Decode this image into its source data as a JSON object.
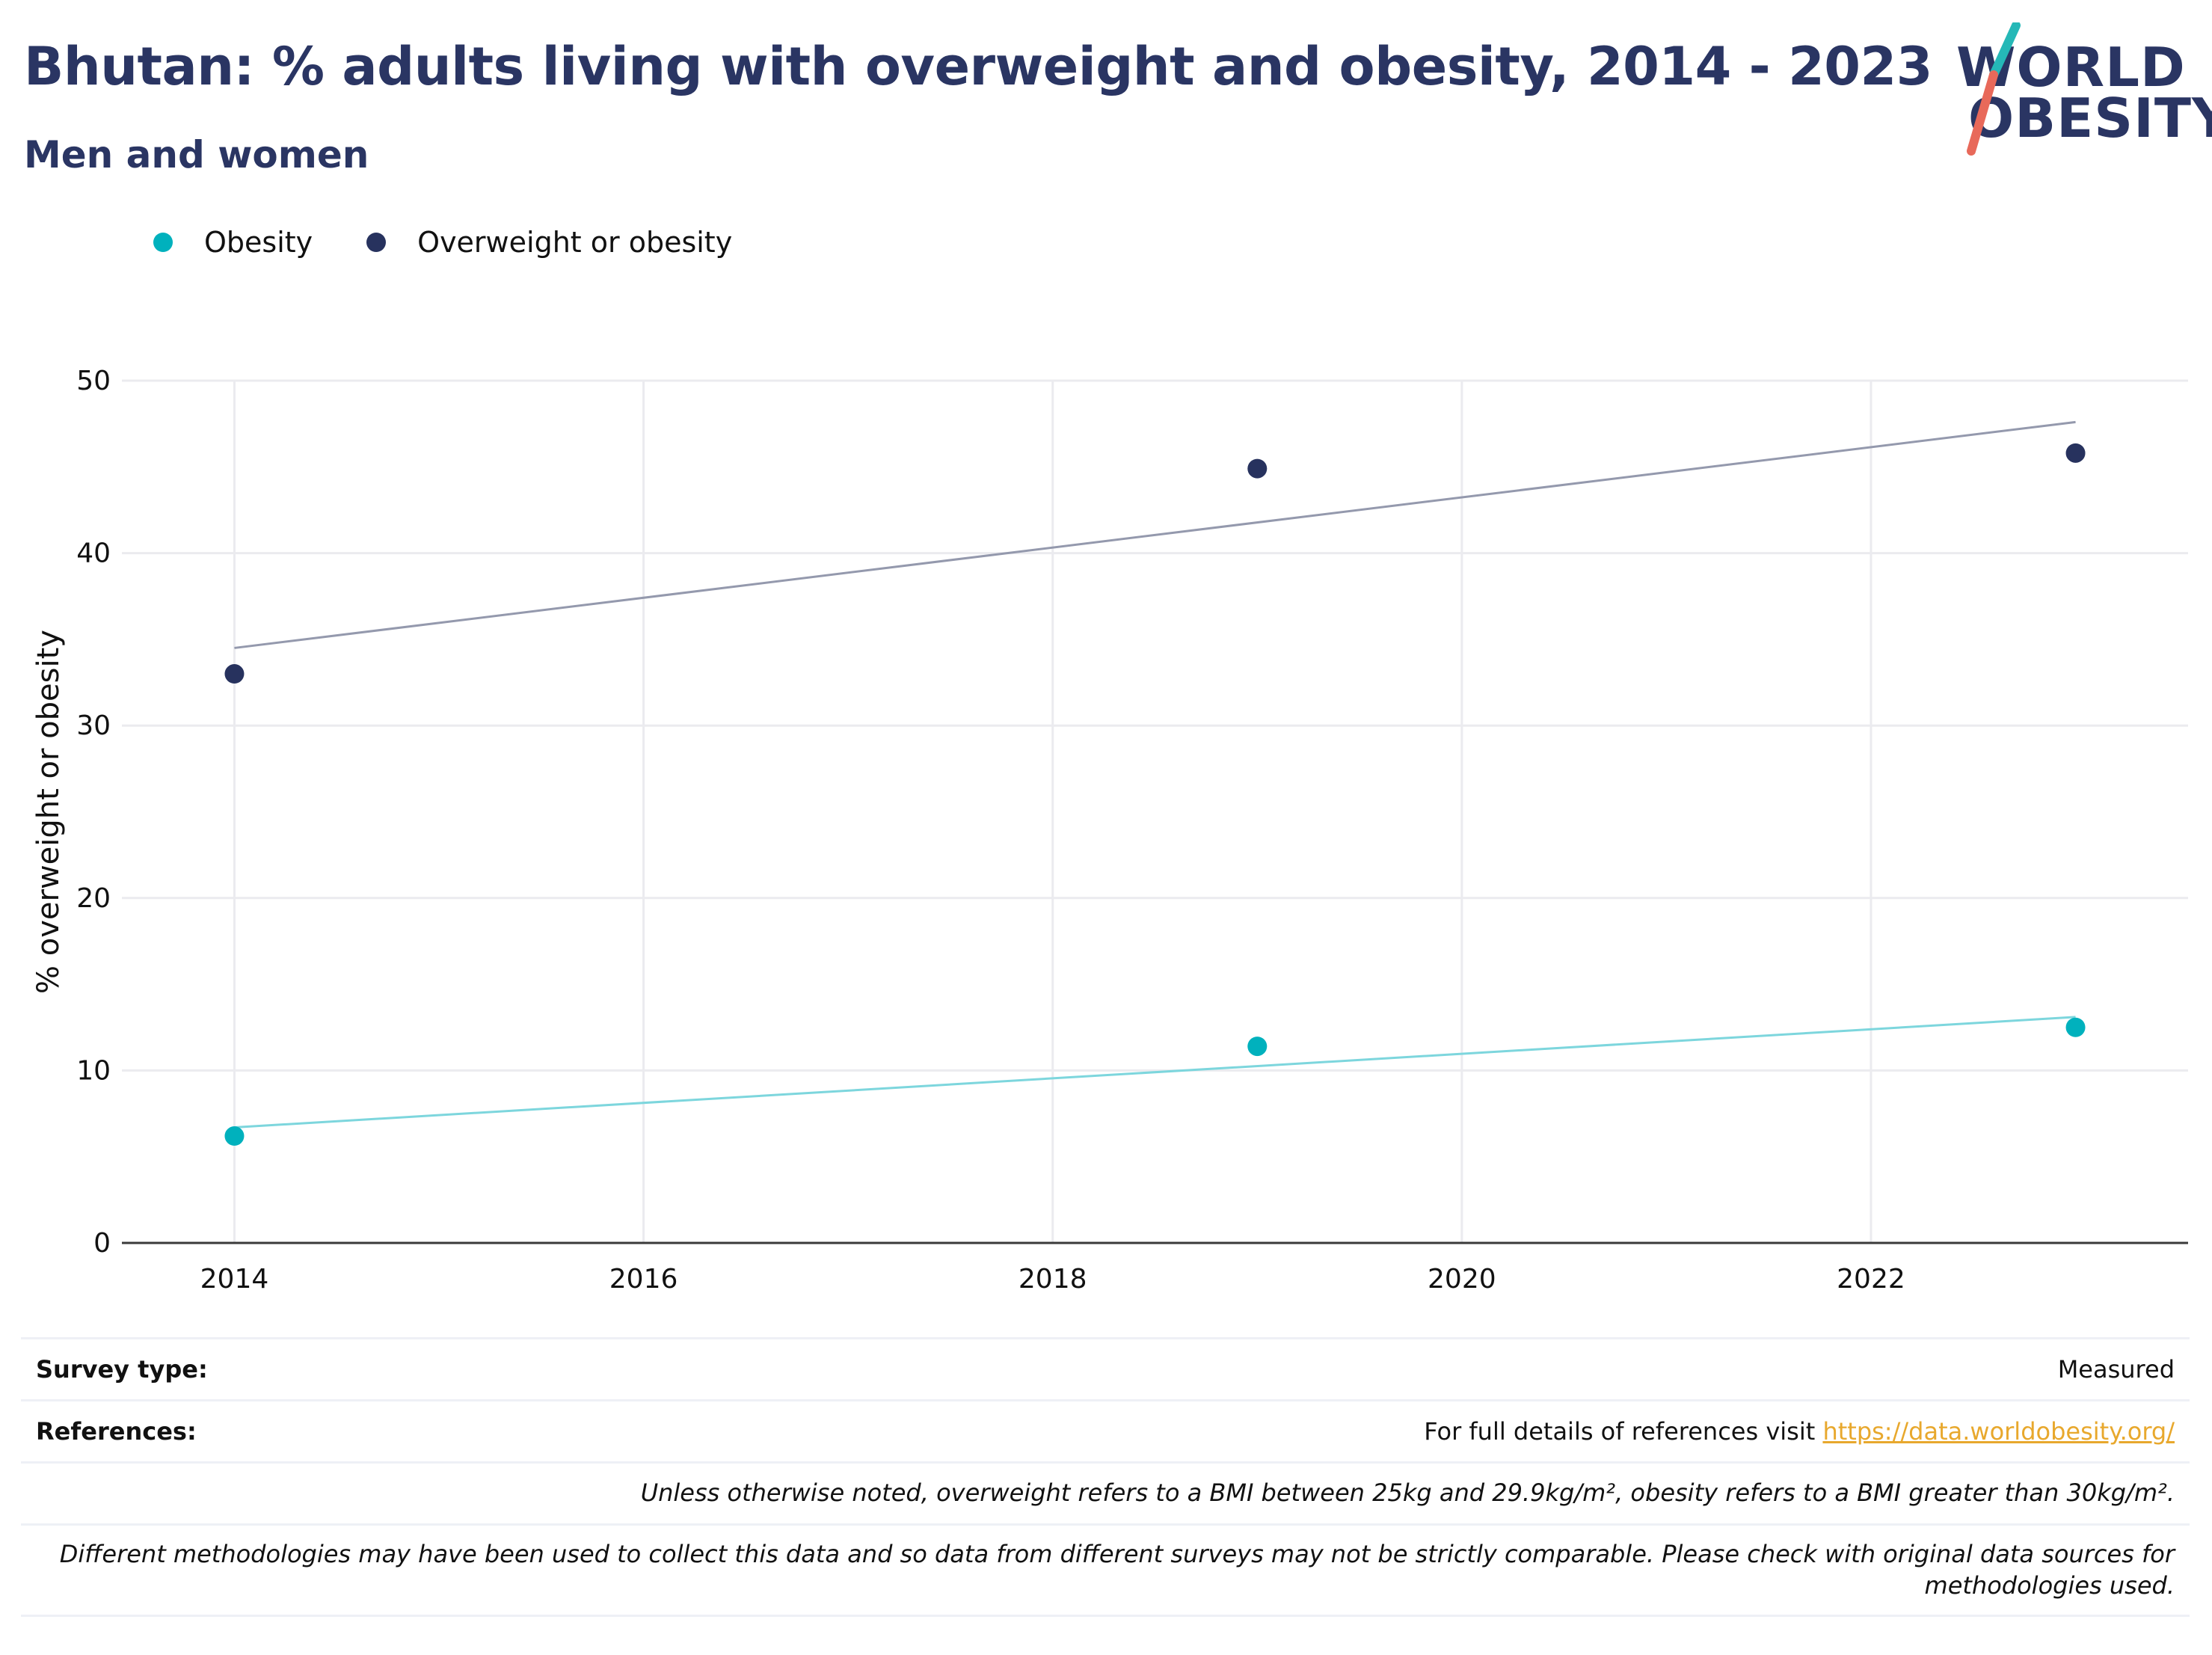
{
  "header": {
    "title": "Bhutan: % adults living with overweight and obesity, 2014 - 2023",
    "subtitle": "Men and women"
  },
  "logo": {
    "line1": "WORLD",
    "line2": "OBESITY"
  },
  "colors": {
    "obesity": "#00b1bd",
    "overweight": "#27325e",
    "obesity_trend": "#7dd6dd",
    "overweight_trend": "#9499ad",
    "logo_teal": "#25b8b7",
    "logo_coral": "#e8695a",
    "link": "#e8a82d"
  },
  "legend": [
    {
      "label": "Obesity",
      "color": "#00b1bd"
    },
    {
      "label": "Overweight or obesity",
      "color": "#27325e"
    }
  ],
  "chart_data": {
    "type": "scatter",
    "ylabel": "% overweight or obesity",
    "xlabel": "",
    "xlim": [
      2013.45,
      2023.55
    ],
    "ylim": [
      0,
      50
    ],
    "xticks": [
      2014,
      2016,
      2018,
      2020,
      2022
    ],
    "yticks": [
      0,
      10,
      20,
      30,
      40,
      50
    ],
    "grid": true,
    "legend_position": "top-left",
    "series": [
      {
        "name": "Obesity",
        "points": [
          [
            2014,
            6.2
          ],
          [
            2019,
            11.4
          ],
          [
            2023,
            12.5
          ]
        ],
        "trend": [
          [
            2014,
            6.7
          ],
          [
            2023,
            13.1
          ]
        ]
      },
      {
        "name": "Overweight or obesity",
        "points": [
          [
            2014,
            33.0
          ],
          [
            2019,
            44.9
          ],
          [
            2023,
            45.8
          ]
        ],
        "trend": [
          [
            2014,
            34.5
          ],
          [
            2023,
            47.6
          ]
        ]
      }
    ]
  },
  "footer": {
    "survey_label": "Survey type:",
    "survey_value": "Measured",
    "references_label": "References:",
    "references_text": "For full details of references visit ",
    "references_link": "https://data.worldobesity.org/",
    "note_bmi": "Unless otherwise noted, overweight refers to a BMI between 25kg and 29.9kg/m², obesity refers to a BMI greater than 30kg/m².",
    "note_methods": "Different methodologies may have been used to collect this data and so data from different surveys may not be strictly comparable. Please check with original data sources for methodologies used."
  }
}
